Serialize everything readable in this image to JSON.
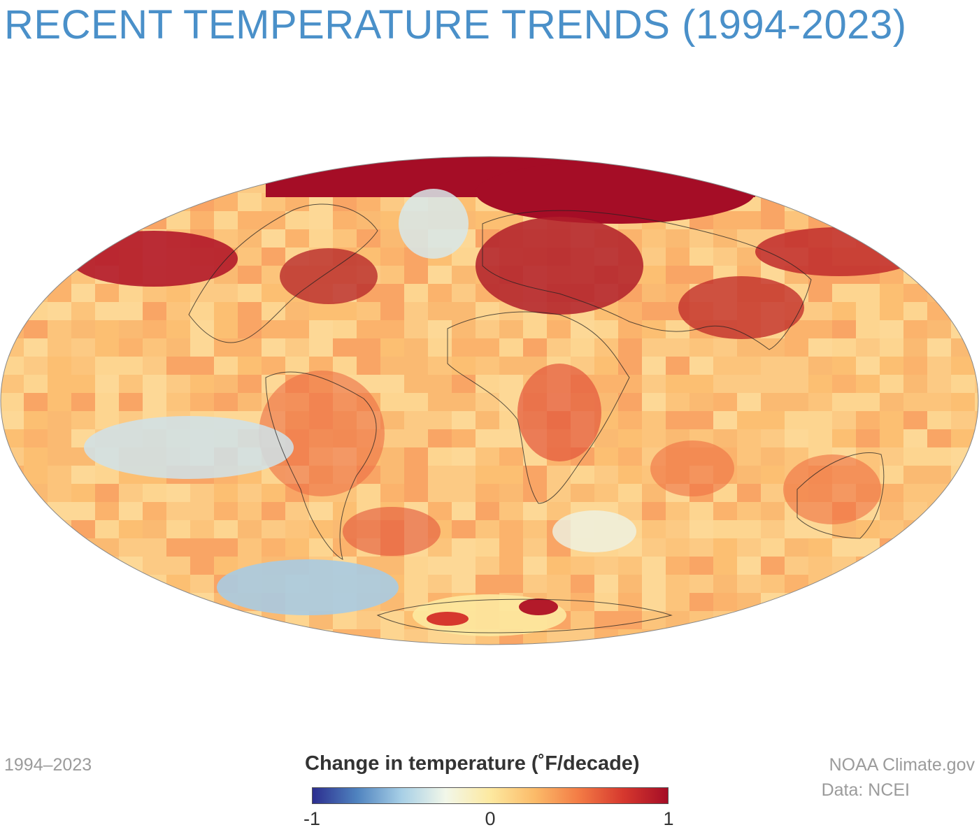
{
  "title": "RECENT TEMPERATURE TRENDS (1994-2023)",
  "period_label": "1994–2023",
  "legend": {
    "title": "Change in temperature (˚F/decade)",
    "ticks": [
      "-1",
      "0",
      "1"
    ],
    "scale_min": -1,
    "scale_max": 1,
    "colors": [
      "#2c2e8f",
      "#4f83bf",
      "#a7cfe6",
      "#f2f7e9",
      "#fde9a0",
      "#fbbb69",
      "#f37b45",
      "#d6382e",
      "#a50d26"
    ]
  },
  "credits": {
    "source": "NOAA Climate.gov",
    "data": "Data: NCEI"
  },
  "map": {
    "projection": "Hammer",
    "central_meridian": 30,
    "variable": "temperature trend",
    "unit": "˚F/decade"
  }
}
